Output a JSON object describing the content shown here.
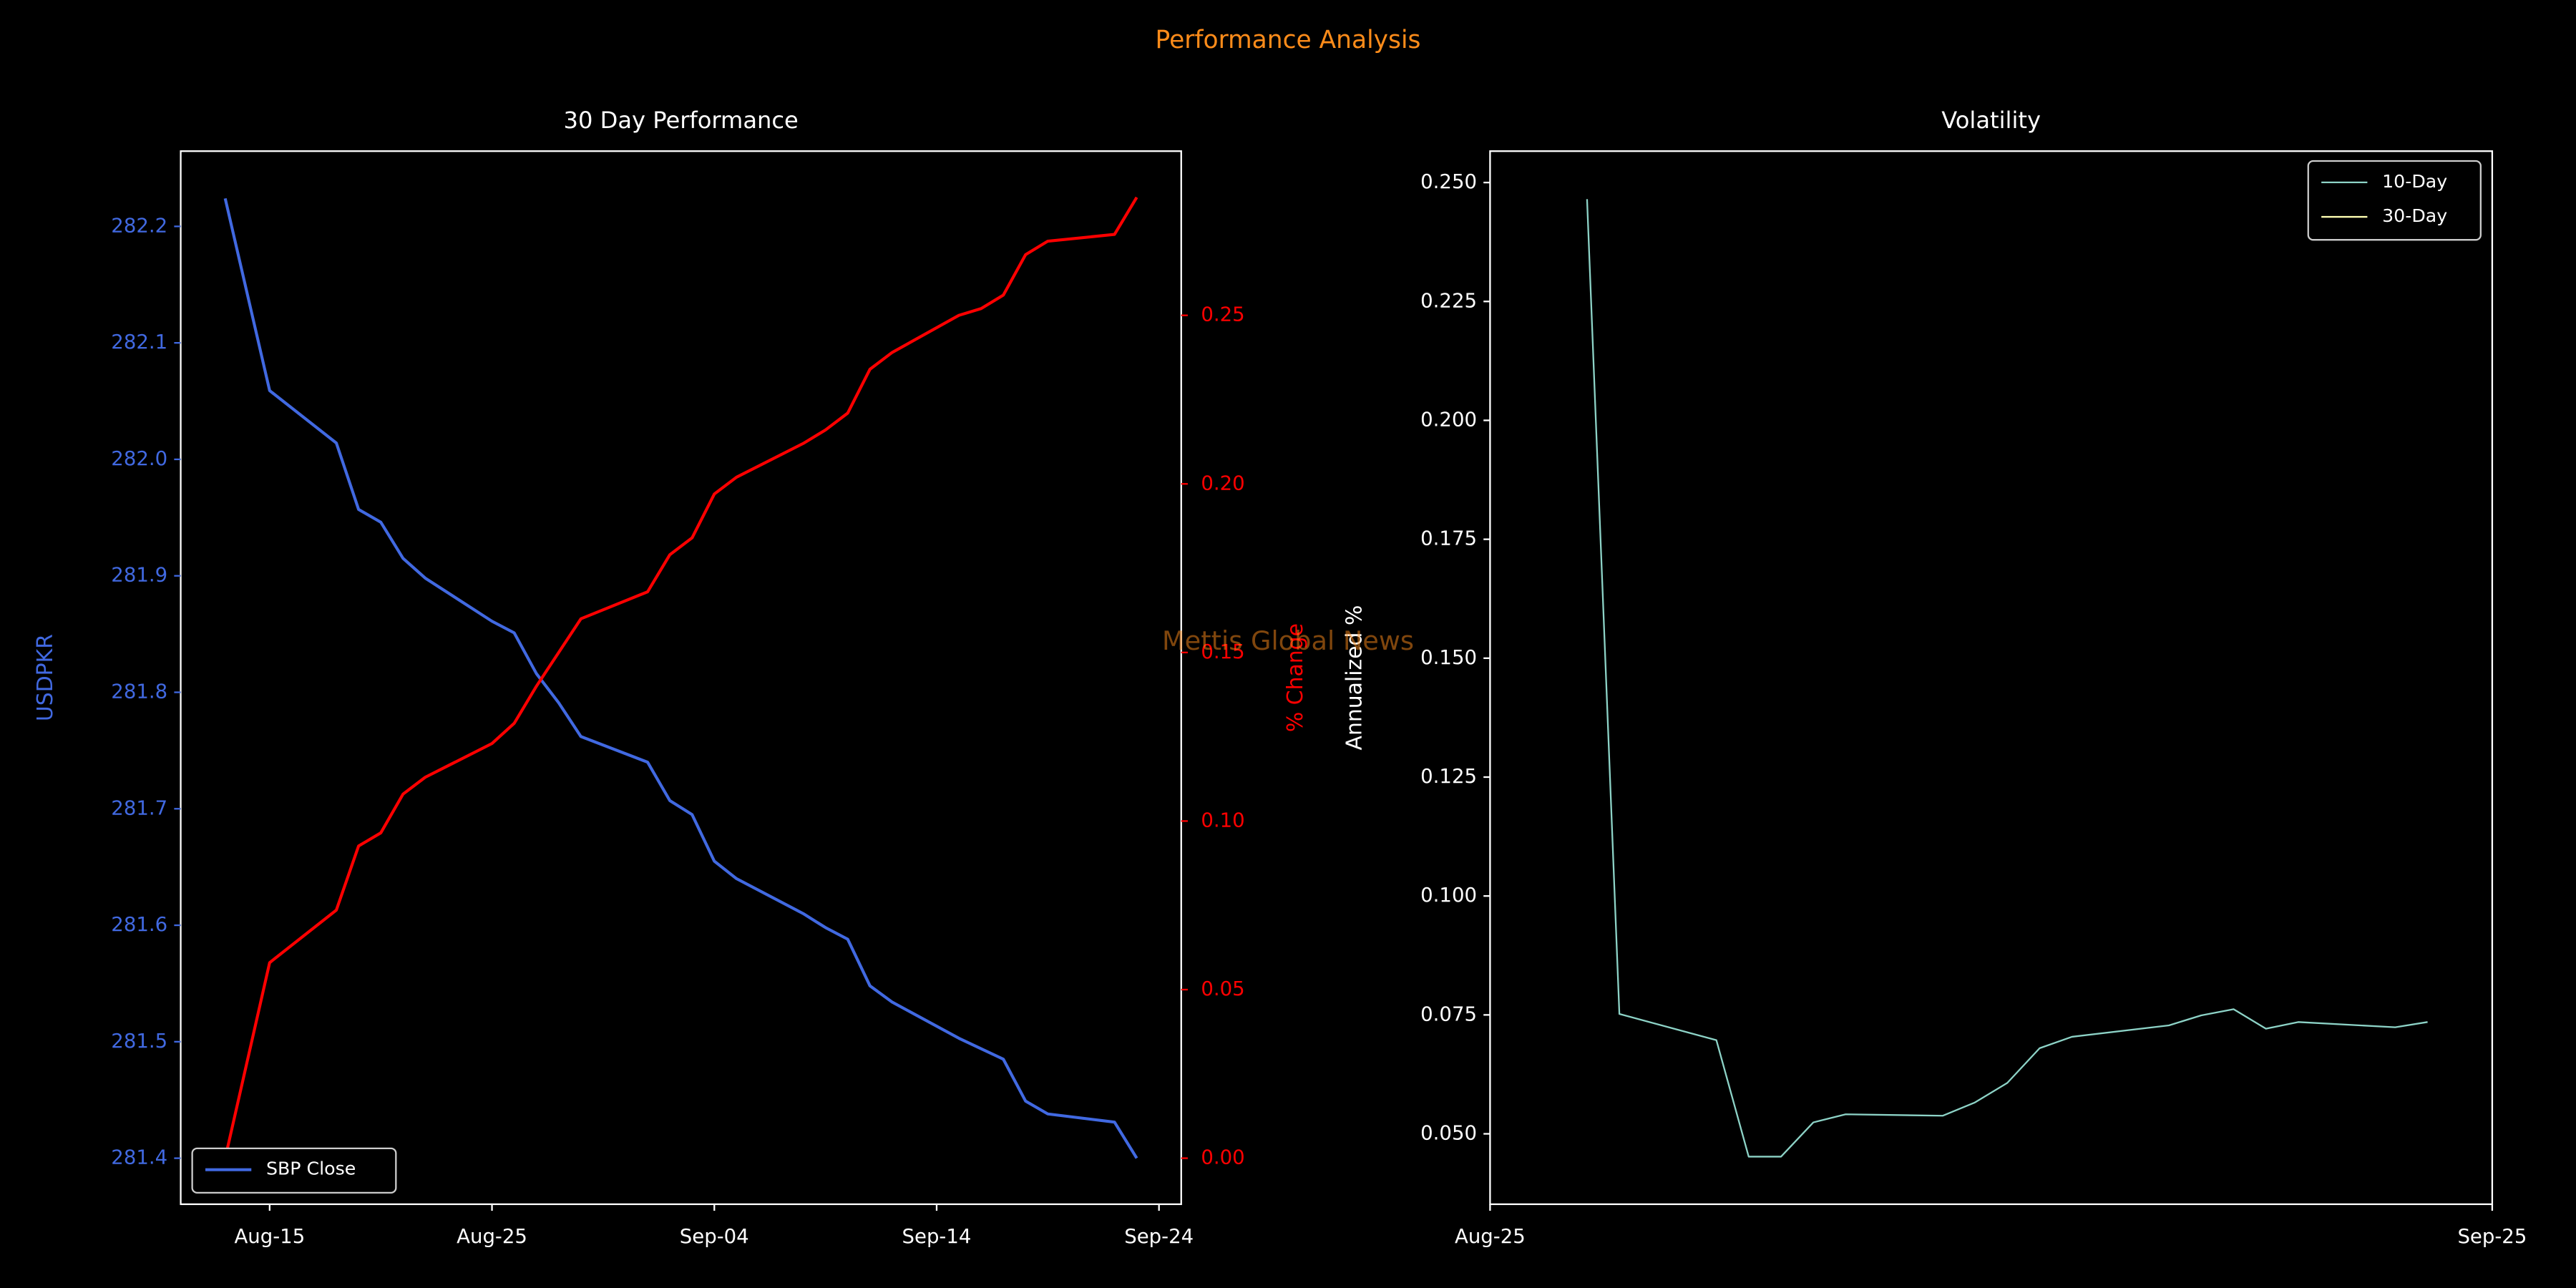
{
  "title": "Performance Analysis",
  "watermark": "Mettis Global News",
  "chart_data": [
    {
      "type": "line",
      "title": "30 Day Performance",
      "ylabel": "USDPKR",
      "y2label": "% Change",
      "ycolor": "#4169e1",
      "y2color": "#ff0000",
      "x": [
        "Aug-13",
        "Aug-15",
        "Aug-18",
        "Aug-19",
        "Aug-20",
        "Aug-21",
        "Aug-22",
        "Aug-25",
        "Aug-26",
        "Aug-27",
        "Aug-28",
        "Aug-29",
        "Sep-01",
        "Sep-02",
        "Sep-03",
        "Sep-04",
        "Sep-05",
        "Sep-08",
        "Sep-09",
        "Sep-10",
        "Sep-11",
        "Sep-12",
        "Sep-15",
        "Sep-16",
        "Sep-17",
        "Sep-18",
        "Sep-19",
        "Sep-22",
        "Sep-23"
      ],
      "xlim": [
        "Aug-11",
        "Sep-25"
      ],
      "xticks": [
        "Aug-15",
        "Aug-25",
        "Sep-04",
        "Sep-14",
        "Sep-24"
      ],
      "ylim": [
        281.3605,
        282.2646
      ],
      "yticks": [
        281.4,
        281.5,
        281.6,
        281.7,
        281.8,
        281.9,
        {
          "value": 282.0,
          "label": "282.0"
        },
        282.1,
        282.2
      ],
      "y2lim": [
        -0.01365,
        0.2987
      ],
      "y2ticks": [
        {
          "value": 0.0,
          "label": "0.00"
        },
        0.05,
        {
          "value": 0.1,
          "label": "0.10"
        },
        0.15,
        {
          "value": 0.2,
          "label": "0.20"
        },
        0.25
      ],
      "legend": "lower left",
      "series": [
        {
          "name": "SBP Close",
          "color": "#4169e1",
          "values": [
            282.224,
            282.059,
            282.014,
            281.957,
            281.946,
            281.915,
            281.898,
            281.861,
            281.851,
            281.816,
            281.791,
            281.762,
            281.74,
            281.707,
            281.695,
            281.655,
            281.64,
            281.61,
            281.598,
            281.588,
            281.548,
            281.534,
            281.503,
            281.494,
            281.485,
            281.449,
            281.438,
            281.431,
            281.4
          ]
        },
        {
          "color": "#ff0000",
          "axis": "y2",
          "values": [
            0.0,
            0.058,
            0.0736,
            0.0926,
            0.0965,
            0.108,
            0.113,
            0.123,
            0.129,
            0.14,
            0.15,
            0.16,
            0.168,
            0.179,
            0.184,
            0.197,
            0.202,
            0.212,
            0.216,
            0.221,
            0.234,
            0.239,
            0.25,
            0.252,
            0.256,
            0.268,
            0.272,
            0.274,
            0.285
          ]
        }
      ]
    },
    {
      "type": "line",
      "title": "Volatility",
      "ylabel": "Annualized %",
      "ycolor": "#ffffff",
      "x": [
        "Aug-28",
        "Aug-29",
        "Sep-01",
        "Sep-02",
        "Sep-03",
        "Sep-04",
        "Sep-05",
        "Sep-08",
        "Sep-09",
        "Sep-10",
        "Sep-11",
        "Sep-12",
        "Sep-15",
        "Sep-16",
        "Sep-17",
        "Sep-18",
        "Sep-19",
        "Sep-22",
        "Sep-23"
      ],
      "xlim": [
        "Aug-25",
        "Sep-25"
      ],
      "xticks": [
        "Aug-25",
        "Sep-25"
      ],
      "ylim": [
        0.0352,
        0.2566
      ],
      "yticks": [
        {
          "value": 0.05,
          "label": "0.050"
        },
        0.075,
        {
          "value": 0.1,
          "label": "0.100"
        },
        0.125,
        {
          "value": 0.15,
          "label": "0.150"
        },
        0.175,
        {
          "value": 0.2,
          "label": "0.200"
        },
        0.225,
        {
          "value": 0.25,
          "label": "0.250"
        }
      ],
      "legend": "upper right",
      "series": [
        {
          "name": "10-Day",
          "color": "#8dd3c7",
          "values": [
            0.2465,
            0.0752,
            0.0697,
            0.0452,
            0.0452,
            0.0524,
            0.0541,
            0.0538,
            0.0566,
            0.0607,
            0.068,
            0.0704,
            0.0728,
            0.0749,
            0.0762,
            0.0721,
            0.0735,
            0.0724,
            0.0735
          ]
        },
        {
          "name": "30-Day",
          "color": "#ffffb3",
          "values": [
            null,
            null,
            null,
            null,
            null,
            null,
            null,
            null,
            null,
            null,
            null,
            null,
            null,
            null,
            null,
            null,
            null,
            null,
            null
          ]
        }
      ]
    }
  ]
}
